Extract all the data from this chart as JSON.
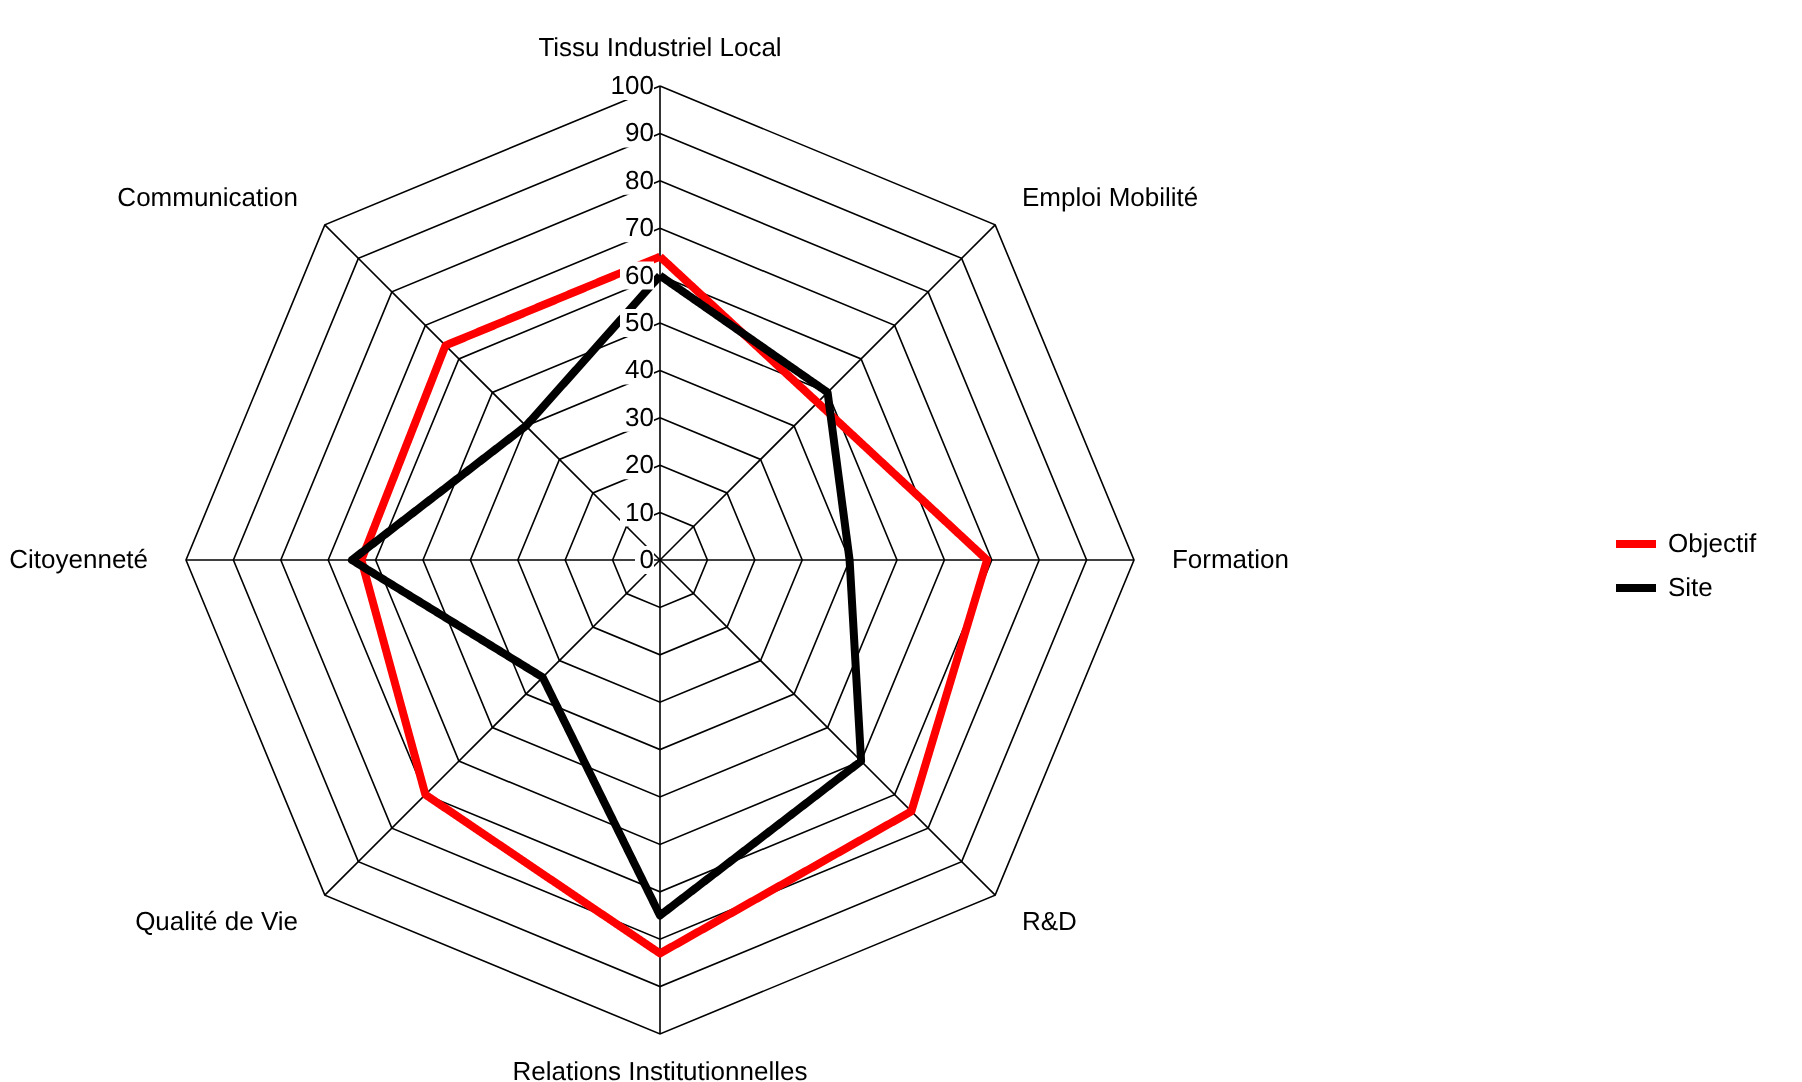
{
  "chart_data": {
    "type": "radar",
    "categories": [
      "Tissu Industriel Local",
      "Emploi Mobilité",
      "Formation",
      "R&D",
      "Relations Institutionnelles",
      "Qualité de Vie",
      "Citoyenneté",
      "Communication"
    ],
    "series": [
      {
        "name": "Objectif",
        "color": "#ff0000",
        "values": [
          64,
          47,
          69,
          75,
          83,
          70,
          63,
          64
        ]
      },
      {
        "name": "Site",
        "color": "#000000",
        "values": [
          60,
          50,
          40,
          60,
          75,
          35,
          65,
          40
        ]
      }
    ],
    "ylim": [
      0,
      100
    ],
    "yticks": [
      0,
      10,
      20,
      30,
      40,
      50,
      60,
      70,
      80,
      90,
      100
    ],
    "legend": "right",
    "marker": "none",
    "line_style": "solid"
  }
}
